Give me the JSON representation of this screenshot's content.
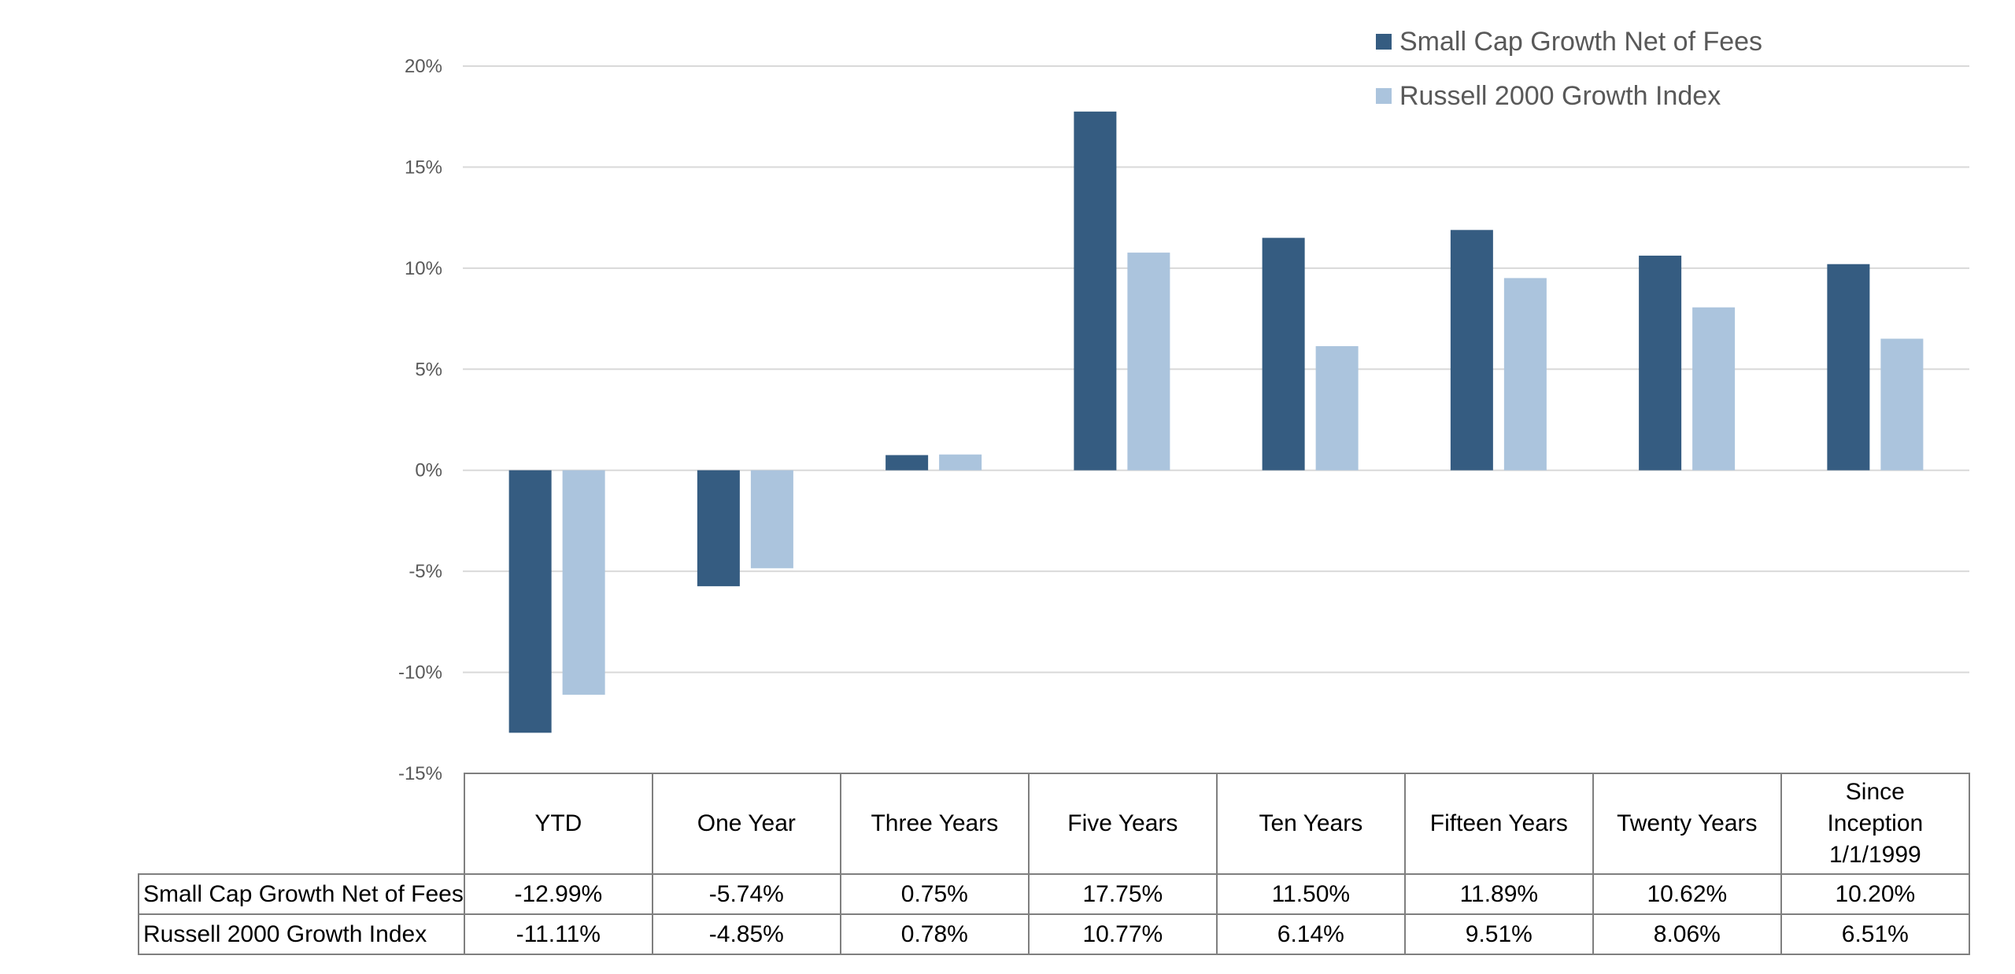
{
  "chart_data": {
    "type": "bar",
    "categories": [
      "YTD",
      "One Year",
      "Three Years",
      "Five Years",
      "Ten Years",
      "Fifteen Years",
      "Twenty Years",
      "Since Inception 1/1/1999"
    ],
    "series": [
      {
        "name": "Small Cap Growth Net of Fees",
        "color": "#355c81",
        "values": [
          -12.99,
          -5.74,
          0.75,
          17.75,
          11.5,
          11.89,
          10.62,
          10.2
        ],
        "labels": [
          "-12.99%",
          "-5.74%",
          "0.75%",
          "17.75%",
          "11.50%",
          "11.89%",
          "10.62%",
          "10.20%"
        ]
      },
      {
        "name": "Russell 2000 Growth Index",
        "color": "#abc4dd",
        "values": [
          -11.11,
          -4.85,
          0.78,
          10.77,
          6.14,
          9.51,
          8.06,
          6.51
        ],
        "labels": [
          "-11.11%",
          "-4.85%",
          "0.78%",
          "10.77%",
          "6.14%",
          "9.51%",
          "8.06%",
          "6.51%"
        ]
      }
    ],
    "yticks": [
      "20%",
      "15%",
      "10%",
      "5%",
      "0%",
      "-5%",
      "-10%",
      "-15%"
    ],
    "ylim": [
      -15,
      20
    ],
    "grid": true,
    "legend": "top-right",
    "gridline_color": "#d9d9d9"
  }
}
